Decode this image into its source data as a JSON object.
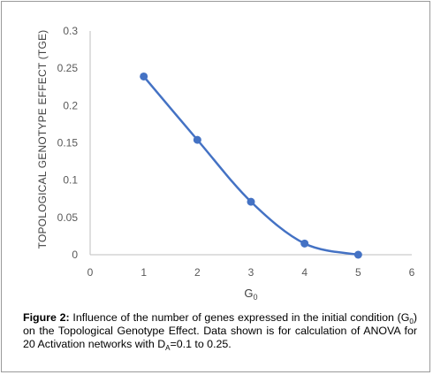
{
  "chart_data": {
    "type": "line",
    "x": [
      1,
      2,
      3,
      4,
      5
    ],
    "values": [
      0.239,
      0.154,
      0.071,
      0.015,
      0.0
    ],
    "xlim": [
      0,
      6
    ],
    "ylim": [
      0,
      0.3
    ],
    "xticks": [
      "0",
      "1",
      "2",
      "3",
      "4",
      "5",
      "6"
    ],
    "yticks": [
      "0",
      "0.05",
      "0.1",
      "0.15",
      "0.2",
      "0.25",
      "0.3"
    ],
    "ylabel": "TOPOLOGICAL GENOTYPE EFFECT (TGE)",
    "xlabel_main": "G",
    "xlabel_sub": "0",
    "grid": false,
    "smooth": true,
    "line_color": "#4472c4"
  },
  "caption": {
    "label": "Figure 2:",
    "text_1": " Influence of the number of genes expressed in the initial condition (G",
    "sub_1": "0",
    "text_2": ") on the Topological Genotype Effect. Data shown is for calculation of ANOVA for 20 Activation networks with D",
    "sub_2": "A",
    "text_3": "=0.1 to 0.25."
  }
}
